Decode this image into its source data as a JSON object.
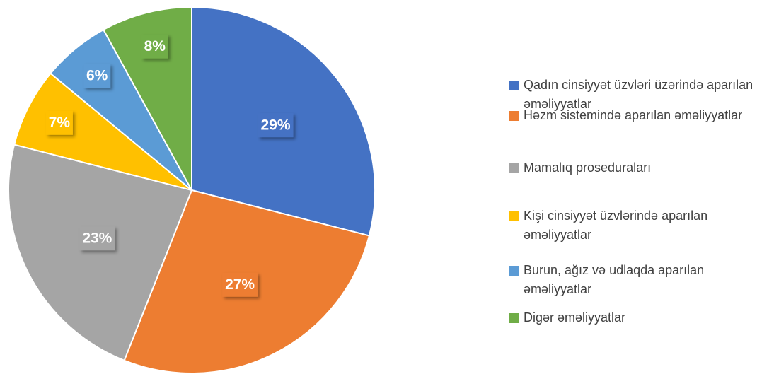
{
  "chart_data": {
    "type": "pie",
    "categories": [
      "Qadın cinsiyyət üzvləri üzərində aparılan əməliyyatlar",
      "Həzm sistemində aparılan əməliyyatlar",
      "Mamalıq prosedurаları",
      "Kişi cinsiyyət üzvlərində aparılan əməliyyatlar",
      "Burun, ağız və udlaqda aparılan əməliyyatlar",
      "Digər əməliyyatlar"
    ],
    "values": [
      29,
      27,
      23,
      7,
      6,
      8
    ],
    "value_labels": [
      "29%",
      "27%",
      "23%",
      "7%",
      "6%",
      "8%"
    ],
    "colors": [
      "#4472c4",
      "#ed7d31",
      "#a5a5a5",
      "#ffc000",
      "#5b9bd5",
      "#70ad47"
    ],
    "legend": "right"
  }
}
